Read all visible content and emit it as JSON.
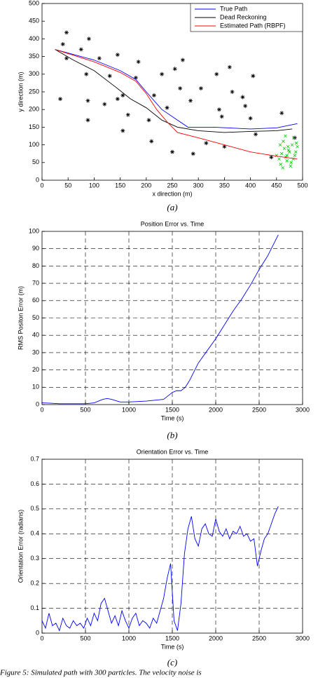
{
  "chart_data": [
    {
      "type": "line",
      "xlabel": "x direction (m)",
      "ylabel": "y direction (m)",
      "xlim": [
        0,
        500
      ],
      "ylim": [
        0,
        500
      ],
      "xticks": [
        0,
        50,
        100,
        150,
        200,
        250,
        300,
        350,
        400,
        450,
        500
      ],
      "yticks": [
        0,
        50,
        100,
        150,
        200,
        250,
        300,
        350,
        400,
        450,
        500
      ],
      "grid": false,
      "legend": "upper right",
      "series": [
        {
          "name": "True Path",
          "color": "#0000ff",
          "x": [
            25,
            100,
            150,
            180,
            200,
            230,
            260,
            280,
            330,
            400,
            450,
            490
          ],
          "values": [
            370,
            340,
            310,
            285,
            250,
            200,
            170,
            150,
            150,
            145,
            148,
            160
          ]
        },
        {
          "name": "Dead Reckoning",
          "color": "#000000",
          "x": [
            25,
            60,
            100,
            140,
            170,
            200,
            230,
            260,
            300,
            350,
            400,
            450,
            480
          ],
          "values": [
            370,
            340,
            310,
            265,
            230,
            205,
            170,
            150,
            140,
            135,
            138,
            140,
            145
          ]
        },
        {
          "name": "Estimated Path (RBPF)",
          "color": "#ff0000",
          "x": [
            25,
            100,
            150,
            180,
            200,
            220,
            240,
            260,
            300,
            350,
            400,
            450,
            490
          ],
          "values": [
            370,
            335,
            305,
            280,
            245,
            200,
            165,
            135,
            120,
            100,
            80,
            68,
            60
          ]
        }
      ],
      "landmarks": {
        "color": "#000000",
        "x": [
          47,
          40,
          47,
          35,
          75,
          90,
          85,
          88,
          88,
          110,
          120,
          130,
          145,
          145,
          155,
          155,
          165,
          180,
          185,
          205,
          210,
          215,
          230,
          240,
          250,
          255,
          265,
          270,
          285,
          290,
          305,
          315,
          335,
          340,
          345,
          350,
          360,
          365,
          385,
          390,
          400,
          405,
          410,
          440,
          460,
          485
        ],
        "values": [
          418,
          385,
          345,
          230,
          370,
          400,
          300,
          225,
          170,
          345,
          215,
          295,
          355,
          230,
          240,
          140,
          185,
          290,
          335,
          170,
          110,
          240,
          300,
          205,
          80,
          315,
          260,
          340,
          225,
          75,
          260,
          105,
          300,
          200,
          180,
          95,
          320,
          250,
          235,
          210,
          175,
          295,
          130,
          65,
          190,
          120
        ]
      },
      "particles": {
        "color": "#00cc00",
        "x": [
          455,
          460,
          465,
          470,
          475,
          480,
          485,
          490,
          458,
          463,
          468,
          473,
          478,
          483,
          488,
          450,
          462,
          472,
          482,
          467,
          477,
          487,
          457,
          470
        ],
        "values": [
          60,
          75,
          90,
          55,
          80,
          100,
          70,
          95,
          45,
          110,
          65,
          85,
          50,
          120,
          105,
          70,
          35,
          95,
          60,
          125,
          40,
          80,
          100,
          70
        ]
      },
      "caption": "(a)"
    },
    {
      "type": "line",
      "title": "Position Error vs. Time",
      "xlabel": "Time (s)",
      "ylabel": "RMS Positon Error (m)",
      "xlim": [
        0,
        3000
      ],
      "ylim": [
        0,
        100
      ],
      "xticks": [
        0,
        500,
        1000,
        1500,
        2000,
        2500,
        3000
      ],
      "yticks": [
        0,
        10,
        20,
        30,
        40,
        50,
        60,
        70,
        80,
        90,
        100
      ],
      "grid": true,
      "series": [
        {
          "color": "#0000ff",
          "x": [
            0,
            100,
            200,
            500,
            600,
            700,
            750,
            800,
            900,
            1000,
            1200,
            1400,
            1500,
            1550,
            1600,
            1650,
            1700,
            1800,
            1900,
            2000,
            2100,
            2200,
            2300,
            2400,
            2500,
            2600,
            2720
          ],
          "values": [
            1,
            0.8,
            0.5,
            0.5,
            1,
            3,
            3.5,
            3,
            1.5,
            1.5,
            2,
            3,
            7,
            8,
            8,
            10,
            14,
            24,
            31,
            38,
            46,
            54,
            61,
            69,
            78,
            86,
            98
          ]
        }
      ],
      "caption": "(b)"
    },
    {
      "type": "line",
      "title": "Orientation Error vs. Time",
      "xlabel": "Time (s)",
      "ylabel": "Orientation Error (radians)",
      "xlim": [
        0,
        3000
      ],
      "ylim": [
        0,
        0.7
      ],
      "xticks": [
        0,
        500,
        1000,
        1500,
        2000,
        2500,
        3000
      ],
      "yticks": [
        0,
        0.1,
        0.2,
        0.3,
        0.4,
        0.5,
        0.6,
        0.7
      ],
      "grid": true,
      "series": [
        {
          "color": "#0000ff",
          "x": [
            0,
            40,
            80,
            120,
            160,
            200,
            240,
            280,
            320,
            360,
            400,
            440,
            480,
            520,
            560,
            600,
            640,
            680,
            720,
            760,
            800,
            840,
            880,
            920,
            960,
            1000,
            1040,
            1080,
            1120,
            1160,
            1200,
            1240,
            1280,
            1320,
            1360,
            1400,
            1440,
            1480,
            1520,
            1560,
            1600,
            1640,
            1680,
            1720,
            1760,
            1800,
            1840,
            1880,
            1920,
            1960,
            2000,
            2040,
            2080,
            2120,
            2160,
            2200,
            2240,
            2280,
            2320,
            2360,
            2400,
            2440,
            2480,
            2520,
            2560,
            2600,
            2640,
            2680,
            2720
          ],
          "values": [
            0.05,
            0.02,
            0.08,
            0.03,
            0.04,
            0.01,
            0.06,
            0.03,
            0.02,
            0.05,
            0.03,
            0.04,
            0.02,
            0.06,
            0.03,
            0.08,
            0.05,
            0.12,
            0.14,
            0.09,
            0.04,
            0.07,
            0.03,
            0.09,
            0.05,
            0.02,
            0.06,
            0.08,
            0.03,
            0.05,
            0.04,
            0.02,
            0.06,
            0.04,
            0.09,
            0.14,
            0.22,
            0.28,
            0.05,
            0.01,
            0.12,
            0.32,
            0.42,
            0.47,
            0.38,
            0.35,
            0.42,
            0.44,
            0.4,
            0.39,
            0.46,
            0.41,
            0.39,
            0.42,
            0.38,
            0.41,
            0.4,
            0.43,
            0.39,
            0.4,
            0.37,
            0.38,
            0.27,
            0.33,
            0.38,
            0.4,
            0.44,
            0.48,
            0.51
          ]
        }
      ],
      "caption": "(c)"
    }
  ],
  "figure_caption": "Figure 5: Simulated path with 300 particles. The velocity noise is"
}
